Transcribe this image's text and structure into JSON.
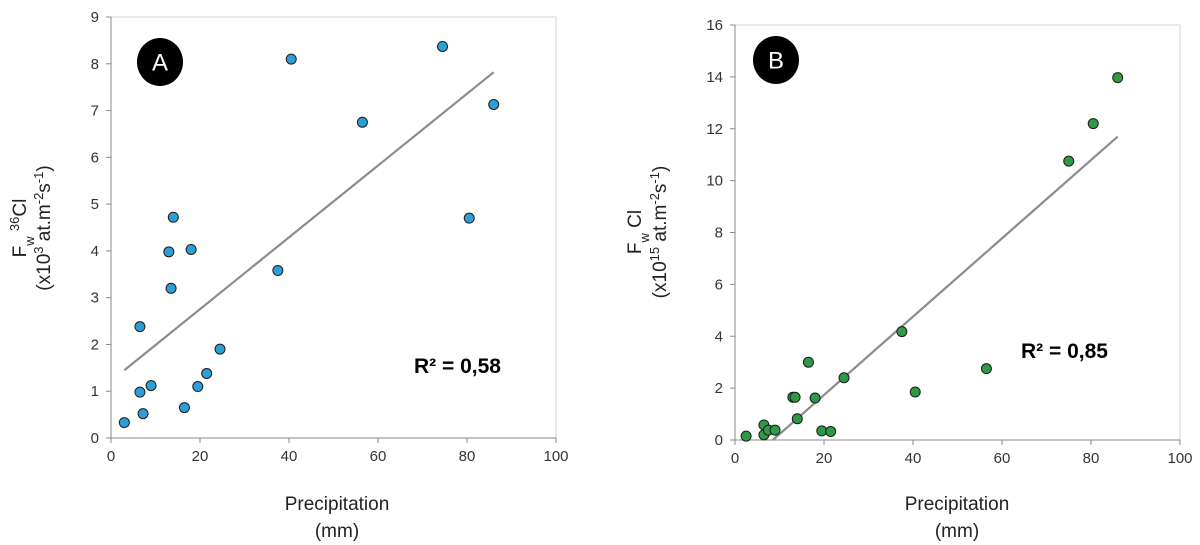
{
  "chart_data": [
    {
      "type": "scatter",
      "panel_label": "A",
      "xlabel": "Precipitation",
      "xlabel_unit": "(mm)",
      "ylabel_line1": "F_w 36Cl",
      "ylabel_line2": "(x10^3 at.m^-2s^-1)",
      "xlim": [
        0,
        100
      ],
      "ylim": [
        0,
        9
      ],
      "xticks": [
        0,
        20,
        40,
        60,
        80,
        100
      ],
      "yticks": [
        0,
        1,
        2,
        3,
        4,
        5,
        6,
        7,
        8,
        9
      ],
      "grid": false,
      "marker_color": "#2e9fd6",
      "trend_color": "#8c8c8c",
      "annotation": "R² = 0,58",
      "trendline": {
        "x": [
          3,
          86
        ],
        "y": [
          1.45,
          7.82
        ]
      },
      "series": [
        {
          "points": [
            [
              3,
              0.33
            ],
            [
              6.5,
              2.38
            ],
            [
              6.5,
              0.98
            ],
            [
              7.2,
              0.52
            ],
            [
              9,
              1.12
            ],
            [
              13,
              3.98
            ],
            [
              13.5,
              3.2
            ],
            [
              14,
              4.72
            ],
            [
              16.5,
              0.65
            ],
            [
              18,
              4.03
            ],
            [
              19.5,
              1.1
            ],
            [
              21.5,
              1.38
            ],
            [
              24.5,
              1.9
            ],
            [
              37.5,
              3.58
            ],
            [
              40.5,
              8.1
            ],
            [
              56.5,
              6.75
            ],
            [
              74.5,
              8.37
            ],
            [
              80.5,
              4.7
            ],
            [
              86,
              7.13
            ]
          ]
        }
      ]
    },
    {
      "type": "scatter",
      "panel_label": "B",
      "xlabel": "Precipitation",
      "xlabel_unit": "(mm)",
      "ylabel_line1": "F_w Cl",
      "ylabel_line2": "(x10^15 at.m^-2s^-1)",
      "xlim": [
        0,
        100
      ],
      "ylim": [
        0,
        16
      ],
      "xticks": [
        0,
        20,
        40,
        60,
        80,
        100
      ],
      "yticks": [
        0,
        2,
        4,
        6,
        8,
        10,
        12,
        14,
        16
      ],
      "grid": false,
      "marker_color": "#2e9a47",
      "trend_color": "#8c8c8c",
      "annotation": "R² = 0,85",
      "trendline": {
        "x": [
          8.5,
          86
        ],
        "y": [
          0,
          11.7
        ]
      },
      "series": [
        {
          "points": [
            [
              2.5,
              0.15
            ],
            [
              6.5,
              0.2
            ],
            [
              6.5,
              0.58
            ],
            [
              7.5,
              0.38
            ],
            [
              9,
              0.38
            ],
            [
              13,
              1.65
            ],
            [
              13.5,
              1.65
            ],
            [
              14,
              0.82
            ],
            [
              16.5,
              3.0
            ],
            [
              18,
              1.62
            ],
            [
              19.5,
              0.35
            ],
            [
              21.5,
              0.33
            ],
            [
              24.5,
              2.4
            ],
            [
              37.5,
              4.18
            ],
            [
              40.5,
              1.85
            ],
            [
              56.5,
              2.75
            ],
            [
              75,
              10.75
            ],
            [
              80.5,
              12.2
            ],
            [
              86,
              13.97
            ]
          ]
        }
      ]
    }
  ]
}
